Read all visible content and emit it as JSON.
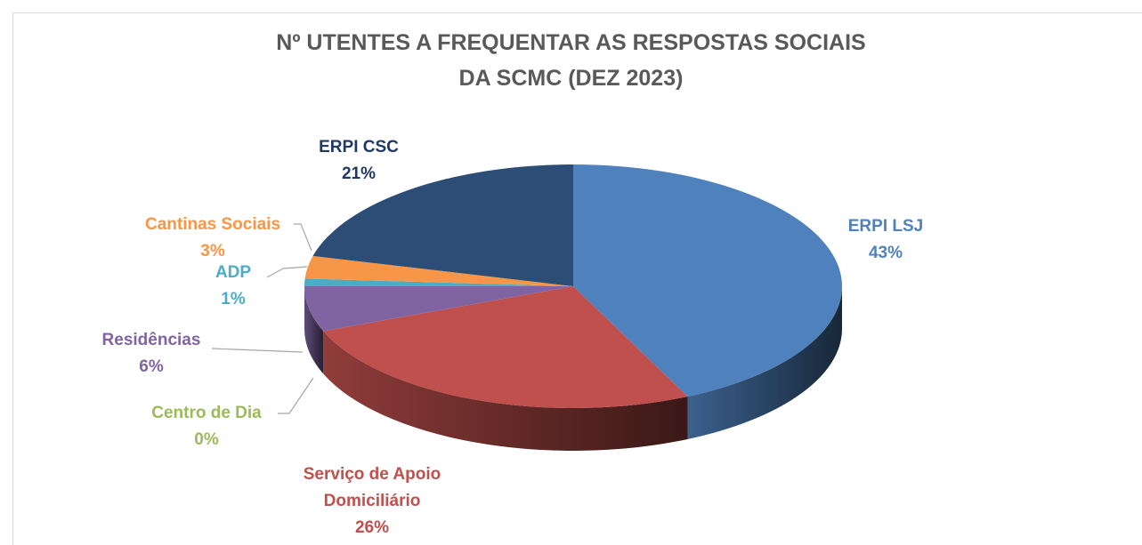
{
  "chart_data": {
    "type": "pie3d",
    "title": [
      "Nº UTENTES A FREQUENTAR AS RESPOSTAS SOCIAIS",
      "DA SCMC (DEZ 2023)"
    ],
    "categories": [
      "ERPI LSJ",
      "Serviço de Apoio Domiciliário",
      "Centro de Dia",
      "Residências",
      "ADP",
      "Cantinas Sociais",
      "ERPI CSC"
    ],
    "values": [
      43,
      26,
      0,
      6,
      1,
      3,
      21
    ],
    "value_labels": [
      "43%",
      "26%",
      "0%",
      "6%",
      "1%",
      "3%",
      "21%"
    ],
    "colors": [
      "#4f81bd",
      "#c0504d",
      "#9bbb59",
      "#8064a2",
      "#4bacc6",
      "#f79646",
      "#2c4d75"
    ]
  }
}
